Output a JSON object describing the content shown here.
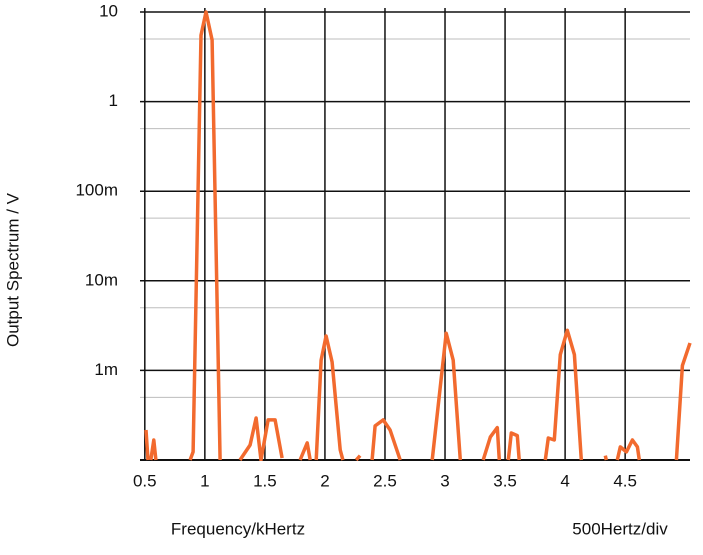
{
  "chart_data": {
    "type": "line",
    "x_label": "Frequency/kHertz",
    "y_label": "Output Spectrum / V",
    "annotation": "500Hertz/div",
    "y_log": true,
    "grid": true,
    "xlim": [
      0.46,
      5.04
    ],
    "ylim": [
      0.0001,
      10
    ],
    "xticks": [
      0.5,
      1,
      1.5,
      2,
      2.5,
      3,
      3.5,
      4,
      4.5
    ],
    "yticks": [
      {
        "value": 0.001,
        "label": "1m"
      },
      {
        "value": 0.01,
        "label": "10m"
      },
      {
        "value": 0.1,
        "label": "100m"
      },
      1,
      10
    ],
    "minor_yticks": [
      0.0005,
      0.005,
      0.05,
      0.5,
      5
    ],
    "series": [
      {
        "color": "#f26a2e",
        "x": [
          0.51,
          0.527,
          null,
          0.55,
          0.575,
          0.592,
          null,
          0.877,
          0.902,
          0.968,
          1.01,
          1.06,
          1.127,
          null,
          1.293,
          1.377,
          1.427,
          1.468,
          1.527,
          1.585,
          1.643,
          null,
          1.793,
          1.852,
          1.877,
          null,
          1.927,
          1.968,
          2.01,
          2.06,
          2.127,
          2.15,
          null,
          2.26,
          2.293,
          null,
          2.393,
          2.418,
          2.485,
          2.543,
          2.627,
          null,
          2.893,
          3.01,
          3.068,
          3.127,
          null,
          3.318,
          3.377,
          3.435,
          3.452,
          null,
          3.527,
          3.552,
          3.602,
          3.618,
          null,
          3.835,
          3.86,
          3.91,
          3.96,
          4.018,
          4.077,
          4.135,
          null,
          4.335,
          4.343,
          null,
          4.435,
          4.46,
          4.51,
          4.56,
          4.602,
          4.618,
          null,
          4.927,
          4.977,
          5.04
        ],
        "values": [
          0.000216,
          0.0001,
          null,
          0.0001,
          0.000167,
          0.0001,
          null,
          0.0001,
          0.000123,
          5.5,
          10,
          4.87,
          0.0001,
          null,
          0.0001,
          0.000147,
          0.000294,
          0.0001,
          0.00028,
          0.00028,
          0.000105,
          null,
          0.0001,
          0.000155,
          0.0001,
          null,
          0.0001,
          0.0013,
          0.00242,
          0.00124,
          0.00013,
          0.0001,
          null,
          0.0001,
          0.000112,
          null,
          0.0001,
          0.00024,
          0.00028,
          0.000216,
          0.0001,
          null,
          0.0001,
          0.0026,
          0.0013,
          0.0001,
          null,
          0.0001,
          0.00018,
          0.00023,
          0.0001,
          null,
          0.0001,
          0.0002,
          0.000187,
          0.0001,
          null,
          0.0001,
          0.000176,
          0.000167,
          0.0015,
          0.0028,
          0.0015,
          0.0001,
          null,
          0.000112,
          0.0001,
          null,
          0.0001,
          0.00014,
          0.000123,
          0.000167,
          0.00014,
          0.0001,
          null,
          0.0001,
          0.00113,
          0.00202
        ]
      }
    ]
  }
}
